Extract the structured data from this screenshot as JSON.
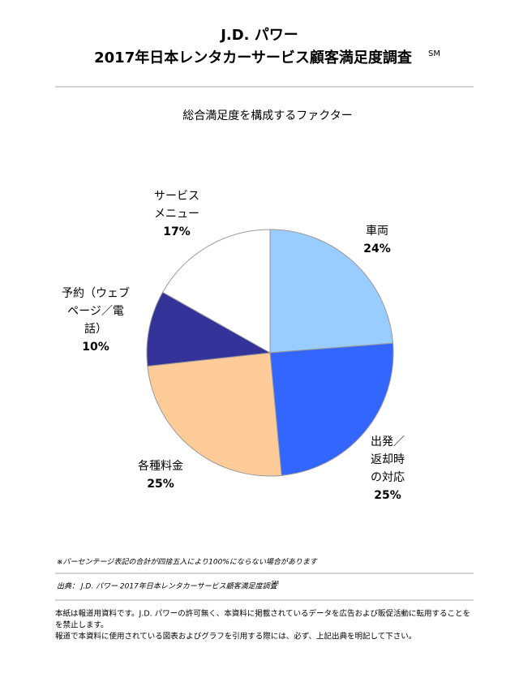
{
  "header": {
    "brand": "J.D. パワー",
    "title": "2017年日本レンタカーサービス顧客満足度調査",
    "title_mark": "SM"
  },
  "chart_data": {
    "type": "pie",
    "title": "総合満足度を構成するファクター",
    "categories": [
      "車両",
      "出発／\n返却時\nの対応",
      "各種料金",
      "予約（ウェブ\nページ／電\n話）",
      "サービス\nメニュー"
    ],
    "values": [
      24,
      25,
      25,
      10,
      17
    ],
    "value_labels": [
      "24%",
      "25%",
      "25%",
      "10%",
      "17%"
    ],
    "colors": [
      "#99ccff",
      "#3366ff",
      "#ffcc99",
      "#333399",
      "#ffffff"
    ]
  },
  "notes": {
    "footnote": "※パーセンテージ表記の合計が四捨五入により100%にならない場合があります",
    "source": "出典： J.D. パワー 2017年日本レンタカーサービス顧客満足度調査",
    "source_mark": "SM",
    "disclaimer": [
      "本紙は報道用資料です。J.D. パワーの許可無く、本資料に掲載されているデータを広告および販促活動に転用することを",
      "を禁止します。",
      "報道で本資料に使用されている図表およびグラフを引用する際には、必ず、上記出典を明記して下さい。"
    ]
  }
}
